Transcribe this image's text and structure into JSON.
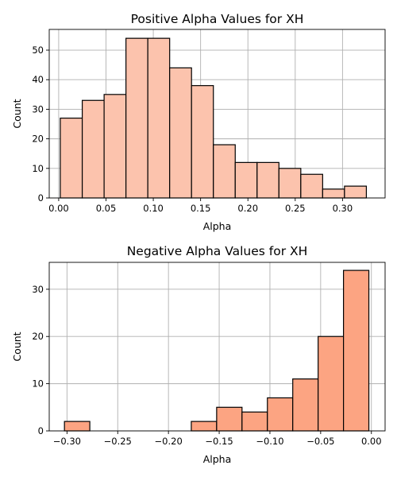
{
  "chart_data": [
    {
      "type": "bar",
      "title": "Positive Alpha Values for XH",
      "xlabel": "Alpha",
      "ylabel": "Count",
      "color": "#fcc3ad",
      "xlim": [
        -0.01,
        0.345
      ],
      "ylim": [
        0,
        57
      ],
      "x_ticks": [
        0.0,
        0.05,
        0.1,
        0.15,
        0.2,
        0.25,
        0.3
      ],
      "x_tick_labels": [
        "0.00",
        "0.05",
        "0.10",
        "0.15",
        "0.20",
        "0.25",
        "0.30"
      ],
      "y_ticks": [
        0,
        10,
        20,
        30,
        40,
        50
      ],
      "y_tick_labels": [
        "0",
        "10",
        "20",
        "30",
        "40",
        "50"
      ],
      "grid": true,
      "bins": [
        {
          "x0": 0.0017,
          "x1": 0.0249,
          "count": 27
        },
        {
          "x0": 0.0249,
          "x1": 0.048,
          "count": 33
        },
        {
          "x0": 0.048,
          "x1": 0.0711,
          "count": 35
        },
        {
          "x0": 0.0711,
          "x1": 0.0942,
          "count": 54
        },
        {
          "x0": 0.0942,
          "x1": 0.1173,
          "count": 54
        },
        {
          "x0": 0.1173,
          "x1": 0.1404,
          "count": 44
        },
        {
          "x0": 0.1404,
          "x1": 0.1635,
          "count": 38
        },
        {
          "x0": 0.1635,
          "x1": 0.1866,
          "count": 18
        },
        {
          "x0": 0.1866,
          "x1": 0.2097,
          "count": 12
        },
        {
          "x0": 0.2097,
          "x1": 0.2328,
          "count": 12
        },
        {
          "x0": 0.2328,
          "x1": 0.2559,
          "count": 10
        },
        {
          "x0": 0.2559,
          "x1": 0.279,
          "count": 8
        },
        {
          "x0": 0.279,
          "x1": 0.3021,
          "count": 3
        },
        {
          "x0": 0.3021,
          "x1": 0.3252,
          "count": 4
        }
      ]
    },
    {
      "type": "bar",
      "title": "Negative Alpha Values for XH",
      "xlabel": "Alpha",
      "ylabel": "Count",
      "color": "#fca482",
      "xlim": [
        -0.3175,
        0.0135
      ],
      "ylim": [
        0,
        35.7
      ],
      "x_ticks": [
        -0.3,
        -0.25,
        -0.2,
        -0.15,
        -0.1,
        -0.05,
        0.0
      ],
      "x_tick_labels": [
        "−0.30",
        "−0.25",
        "−0.20",
        "−0.15",
        "−0.10",
        "−0.05",
        "0.00"
      ],
      "y_ticks": [
        0,
        10,
        20,
        30
      ],
      "y_tick_labels": [
        "0",
        "10",
        "20",
        "30"
      ],
      "grid": true,
      "bins": [
        {
          "x0": -0.3025,
          "x1": -0.2775,
          "count": 2
        },
        {
          "x0": -0.2775,
          "x1": -0.2525,
          "count": 0
        },
        {
          "x0": -0.2525,
          "x1": -0.2275,
          "count": 0
        },
        {
          "x0": -0.2275,
          "x1": -0.2025,
          "count": 0
        },
        {
          "x0": -0.2025,
          "x1": -0.1775,
          "count": 0
        },
        {
          "x0": -0.1775,
          "x1": -0.1525,
          "count": 2
        },
        {
          "x0": -0.1525,
          "x1": -0.1275,
          "count": 5
        },
        {
          "x0": -0.1275,
          "x1": -0.1025,
          "count": 4
        },
        {
          "x0": -0.1025,
          "x1": -0.0775,
          "count": 7
        },
        {
          "x0": -0.0775,
          "x1": -0.0525,
          "count": 11
        },
        {
          "x0": -0.0525,
          "x1": -0.0275,
          "count": 20
        },
        {
          "x0": -0.0275,
          "x1": -0.0025,
          "count": 34
        }
      ]
    }
  ]
}
